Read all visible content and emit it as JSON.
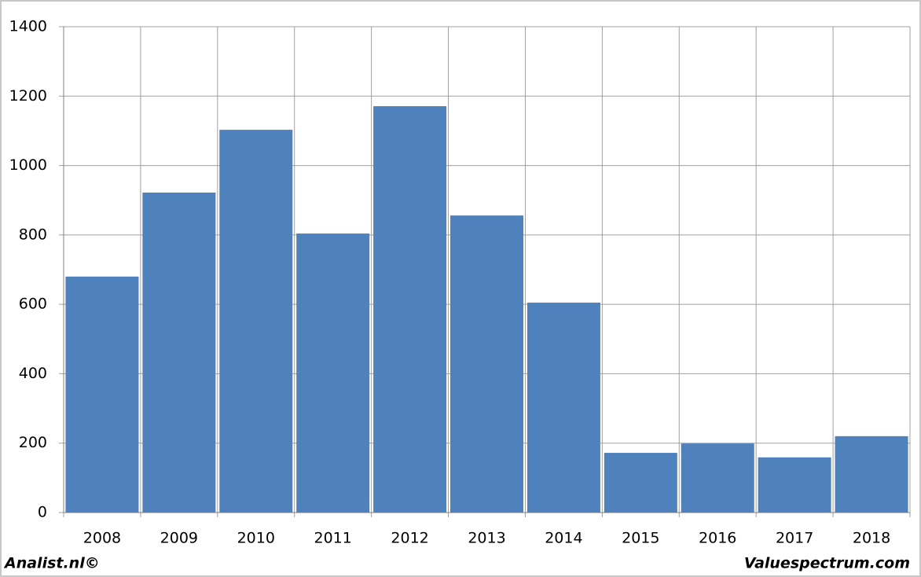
{
  "chart_data": {
    "type": "bar",
    "categories": [
      "2008",
      "2009",
      "2010",
      "2011",
      "2012",
      "2013",
      "2014",
      "2015",
      "2016",
      "2017",
      "2018"
    ],
    "values": [
      680,
      922,
      1103,
      804,
      1171,
      856,
      605,
      172,
      199,
      159,
      220
    ],
    "color": "#4f81bd",
    "ylim": [
      0,
      1400
    ],
    "yticks": [
      0,
      200,
      400,
      600,
      800,
      1000,
      1200,
      1400
    ],
    "grid": true,
    "footer_left": "Analist.nl©",
    "footer_right": "Valuespectrum.com"
  }
}
